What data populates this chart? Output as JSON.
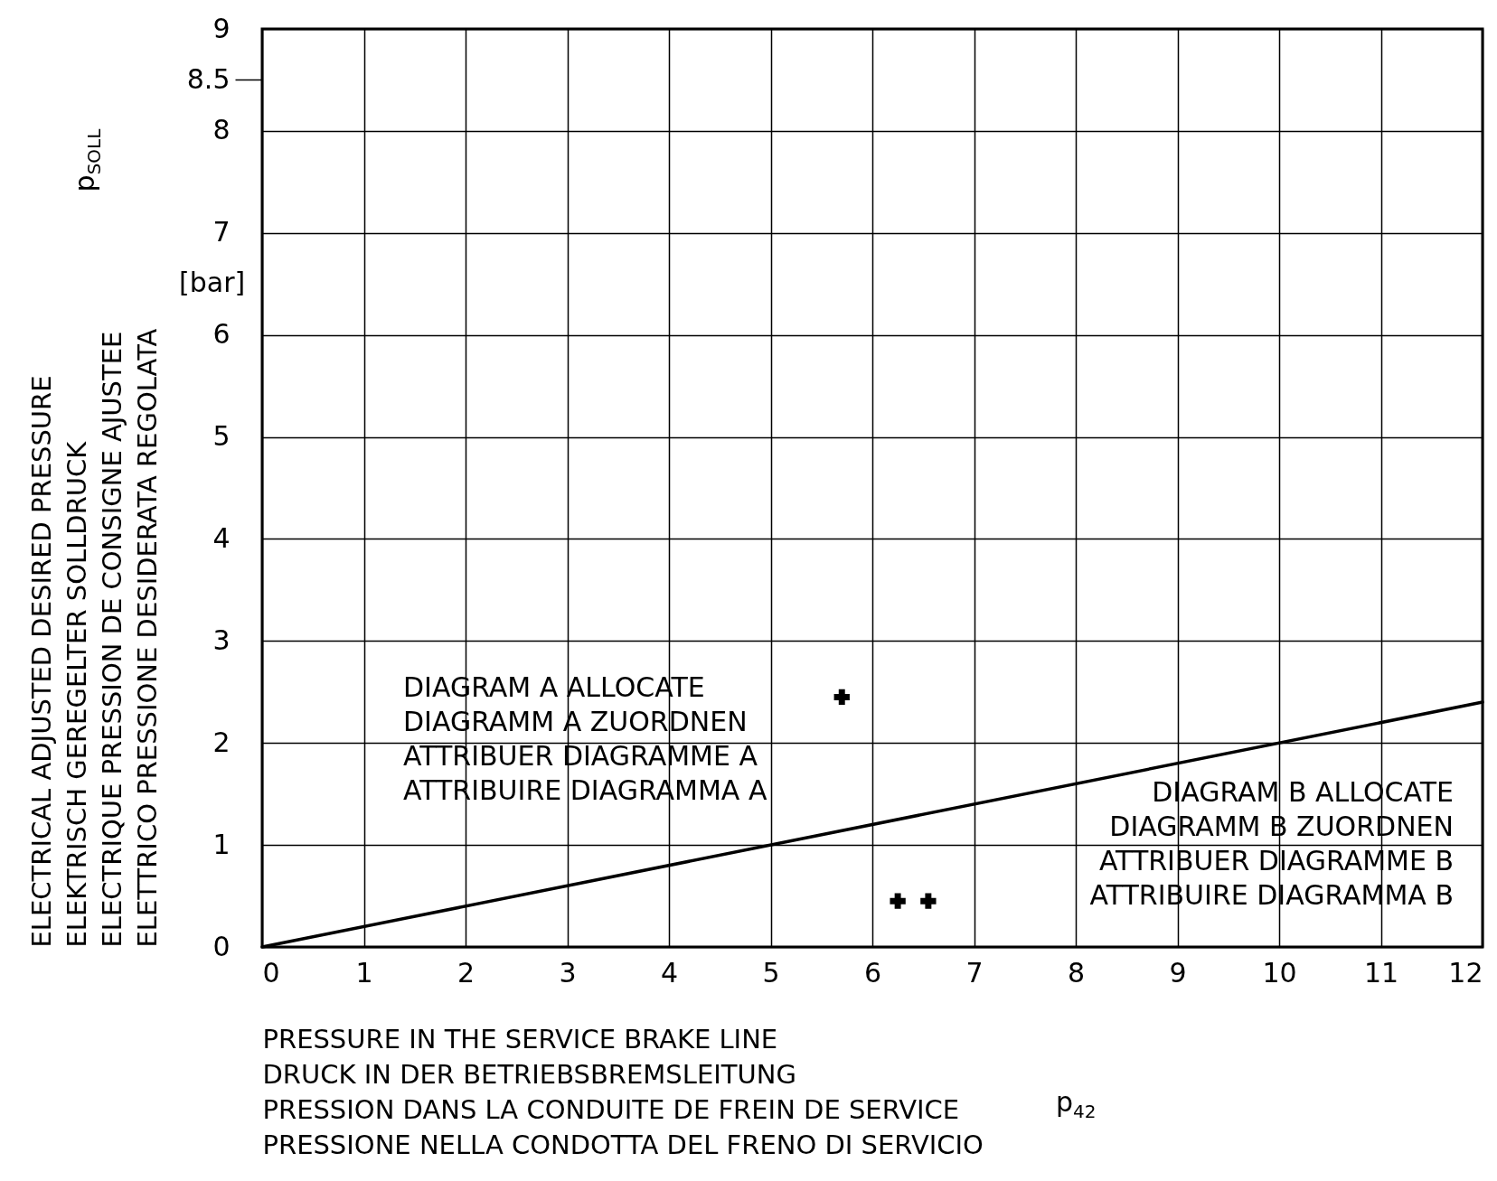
{
  "chart_data": {
    "type": "line",
    "xlabel": "PRESSURE IN THE SERVICE BRAKE LINE\nDRUCK IN DER BETRIEBSBREMSLEITUNG\nPRESSION DANS LA CONDUITE DE FREIN DE SERVICE\nPRESSIONE NELLA CONDOTTA DEL FRENO DI SERVICIO",
    "ylabel": "ELECTRICAL ADJUSTED DESIRED PRESSURE\nELEKTRISCH GEREGELTER SOLLDRUCK\nELECTRIQUE PRESSION DE CONSIGNE AJUSTEE\nELETTRICO PRESSIONE DESIDERATA REGOLATA",
    "series": [
      {
        "color": "#000000",
        "x": [
          0,
          12
        ],
        "values": [
          0,
          2.4
        ],
        "line_style": "solid"
      },
      {
        "type": "scatter",
        "color": "#000000",
        "x": [
          5.7,
          6.25,
          6.55
        ],
        "values": [
          2.45,
          0.45,
          0.45
        ],
        "marker": "cross"
      }
    ],
    "xlim": [
      0,
      12
    ],
    "xticks": [
      0,
      1,
      2,
      3,
      4,
      5,
      6,
      7,
      8,
      9,
      10,
      11,
      12
    ],
    "ylim": [
      0,
      9
    ],
    "yticks": [
      0,
      1,
      2,
      3,
      4,
      5,
      6,
      7,
      8,
      8.5,
      9
    ],
    "grid": true,
    "annotations": [
      "DIAGRAM A ALLOCATE\nDIAGRAMM A ZUORDNEN\nATTRIBUER DIAGRAMME A\nATTRIBUIRE DIAGRAMMA A",
      "DIAGRAM B ALLOCATE\nDIAGRAMM B ZUORDNEN\nATTRIBUER DIAGRAMME B\nATTRIBUIRE DIAGRAMMA B",
      "p$_{SOLL}$",
      "[bar]",
      "p$_{42}$"
    ]
  }
}
